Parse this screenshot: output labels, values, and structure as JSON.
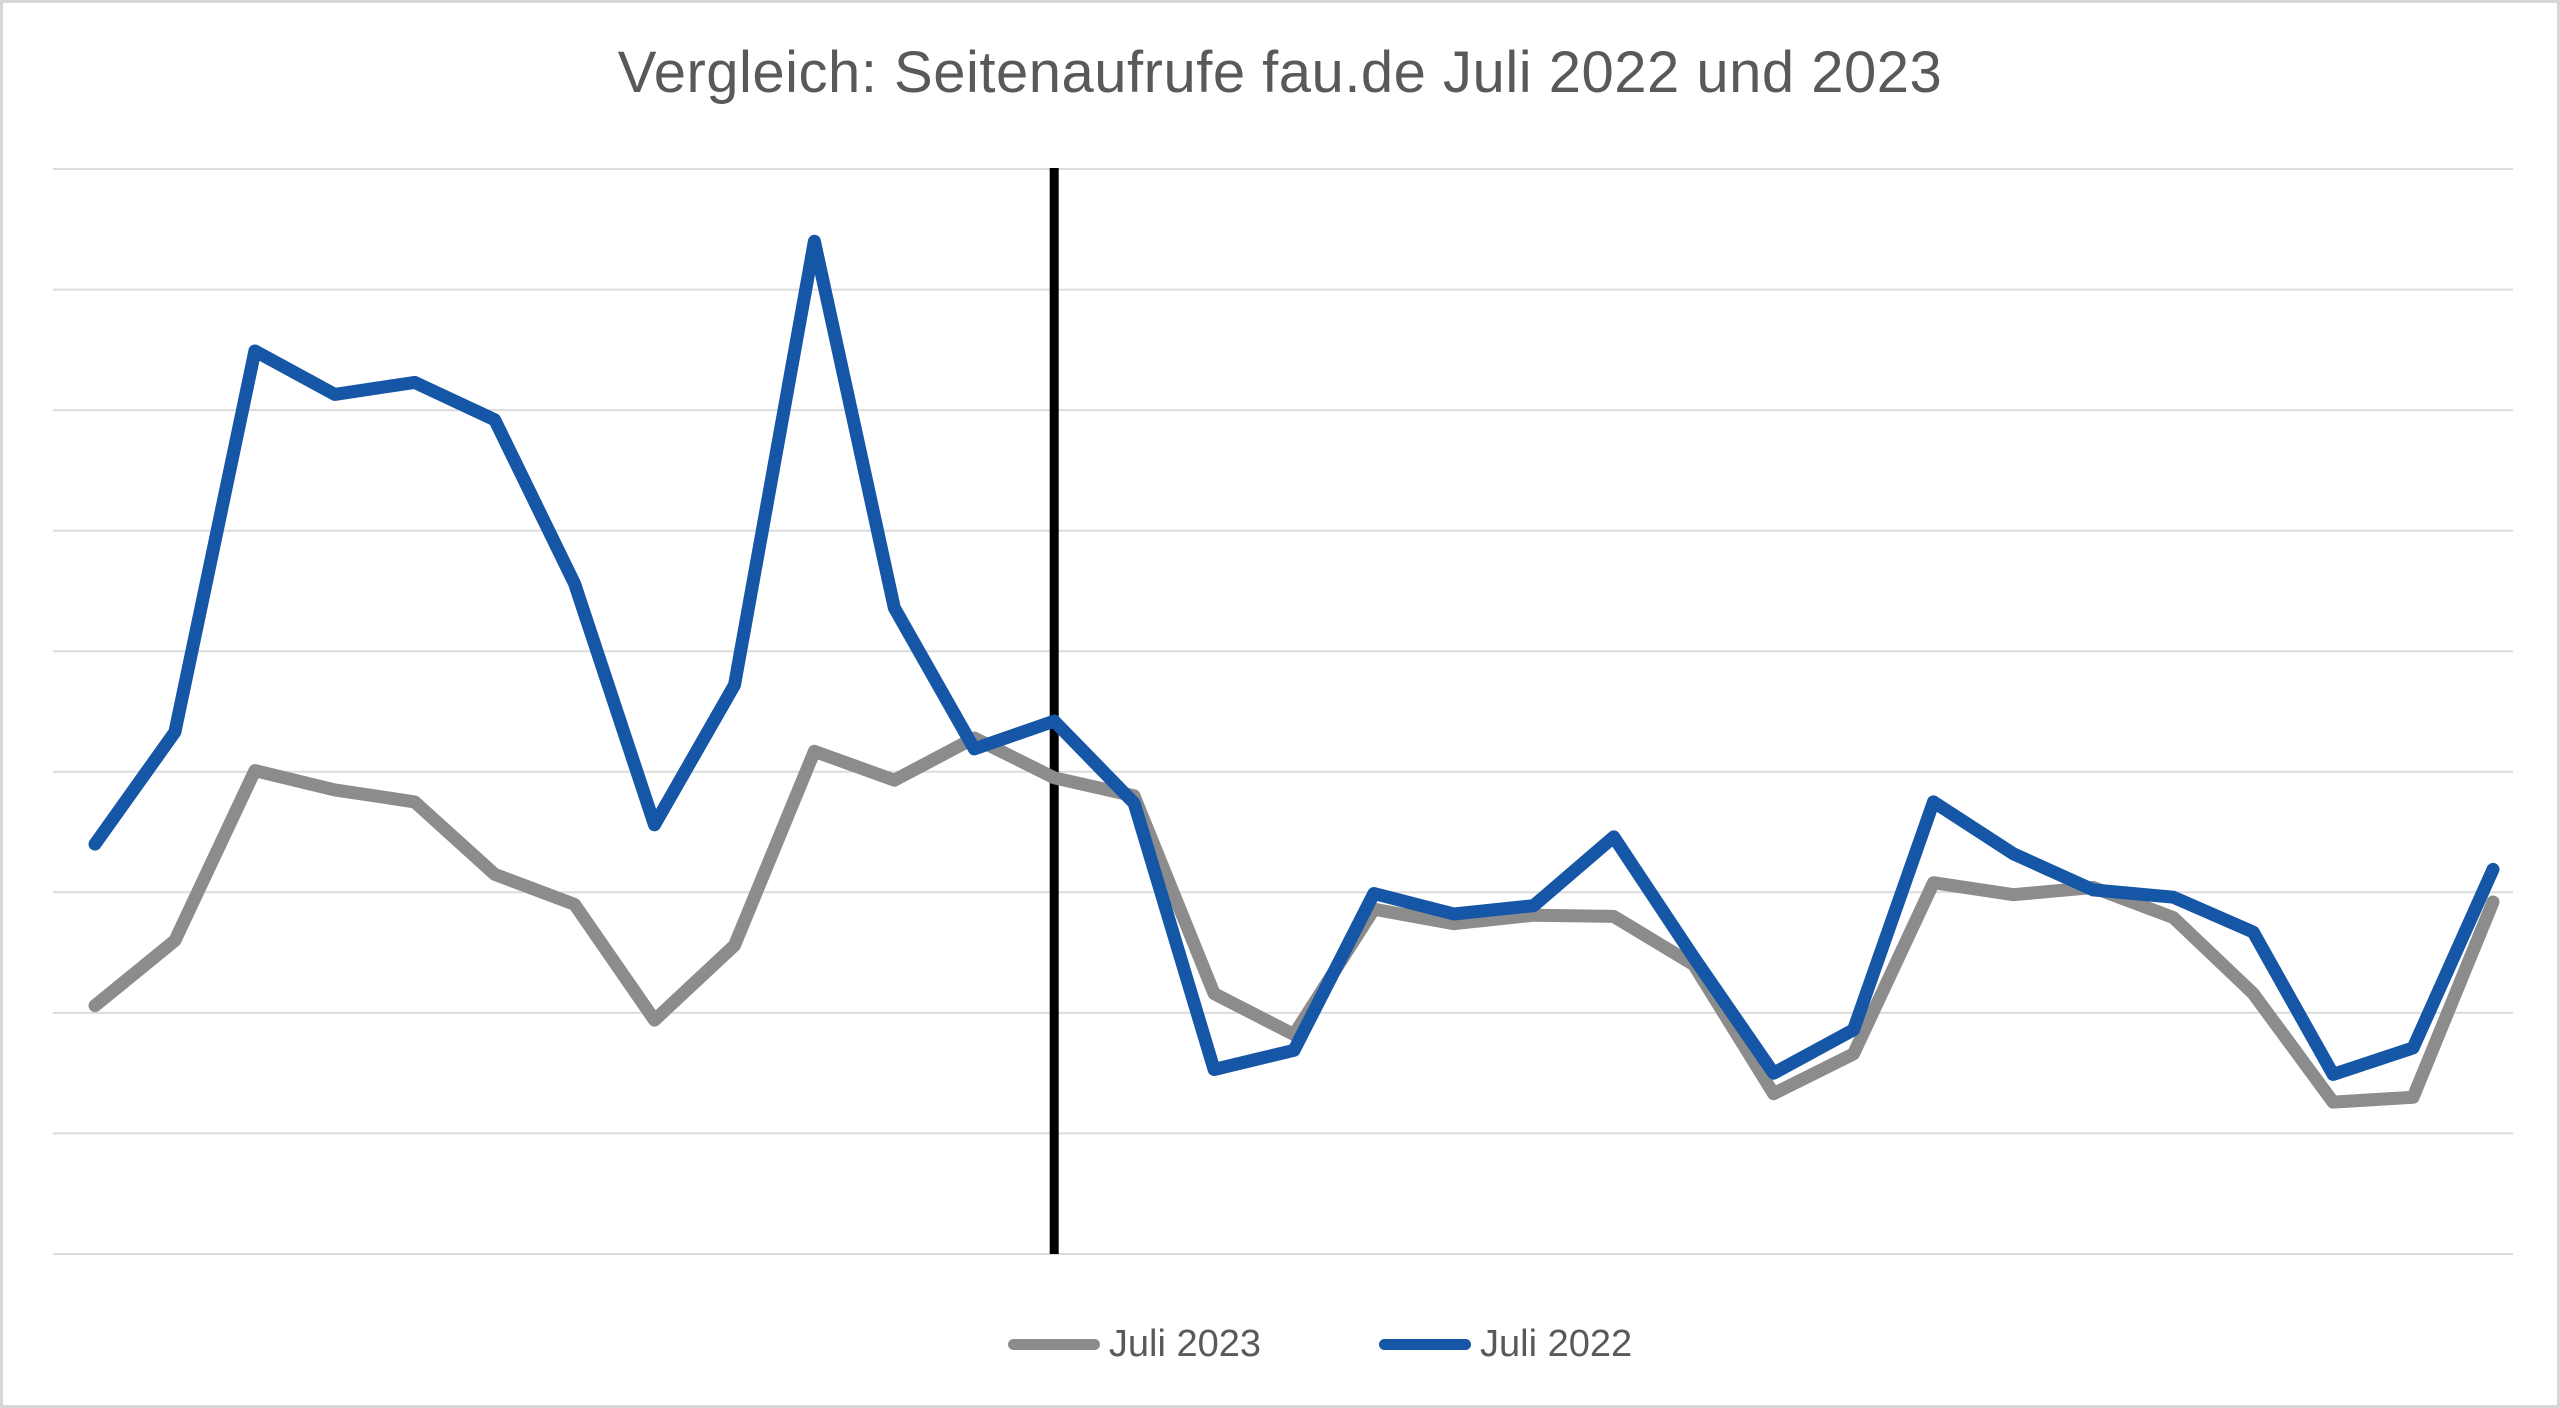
{
  "title": "Vergleich: Seitenaufrufe fau.de Juli 2022 und 2023",
  "legend": {
    "items": [
      {
        "label": "Juli 2023",
        "color": "#8C8C8C"
      },
      {
        "label": "Juli 2022",
        "color": "#1656A6"
      }
    ]
  },
  "colors": {
    "background": "#FFFFFF",
    "frame_border": "#D6D6D6",
    "title_text": "#595959",
    "legend_text": "#595959",
    "gridline": "#DCDCDC",
    "divider_line": "#000000",
    "series_juli_2023": "#8C8C8C",
    "series_juli_2022": "#1656A6"
  },
  "chart_data": {
    "type": "line",
    "title": "Vergleich: Seitenaufrufe fau.de Juli 2022 und 2023",
    "x": [
      1,
      2,
      3,
      4,
      5,
      6,
      7,
      8,
      9,
      10,
      11,
      12,
      13,
      14,
      15,
      16,
      17,
      18,
      19,
      20,
      21,
      22,
      23,
      24,
      25,
      26,
      27,
      28,
      29,
      30,
      31
    ],
    "x_implied_unit": "Tag im Juli",
    "xlabel": "",
    "ylabel": "",
    "axis_tick_labels_visible": false,
    "ylim": [
      0,
      9
    ],
    "y_unit": "gridline units (y-axis unlabeled, values estimated from gridlines)",
    "grid": {
      "horizontal_lines": 10,
      "vertical_lines": 0
    },
    "legend_position": "bottom-center",
    "legend_entries": [
      "Juli 2023",
      "Juli 2022"
    ],
    "series": [
      {
        "name": "Juli 2023",
        "color": "#8C8C8C",
        "values": [
          2.06,
          2.6,
          4.01,
          3.85,
          3.75,
          3.15,
          2.9,
          1.94,
          2.56,
          4.17,
          3.93,
          4.28,
          3.95,
          3.8,
          2.16,
          1.82,
          2.86,
          2.74,
          2.81,
          2.8,
          2.4,
          1.33,
          1.66,
          3.08,
          2.98,
          3.04,
          2.79,
          2.16,
          1.26,
          1.3,
          2.92
        ]
      },
      {
        "name": "Juli 2022",
        "color": "#1656A6",
        "values": [
          3.4,
          4.33,
          7.49,
          7.13,
          7.23,
          6.92,
          5.56,
          3.56,
          4.72,
          8.4,
          5.36,
          4.19,
          4.42,
          3.74,
          1.53,
          1.69,
          2.99,
          2.82,
          2.89,
          3.46,
          2.46,
          1.5,
          1.86,
          3.75,
          3.32,
          3.02,
          2.96,
          2.67,
          1.49,
          1.71,
          3.19
        ]
      }
    ],
    "annotations": [
      {
        "type": "vertical_divider_line",
        "at_x": 13,
        "color": "#000000",
        "spans": "full_plot_height"
      }
    ]
  }
}
